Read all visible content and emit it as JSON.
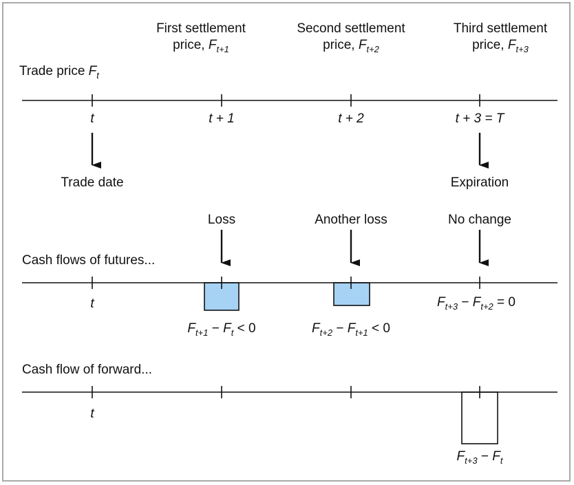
{
  "colors": {
    "bar_fill": "#a6d2f3",
    "line": "#111111",
    "frame": "#a9a9a9"
  },
  "header": {
    "trade_price_label": "Trade price",
    "trade_price_var": "F",
    "trade_price_sub": "t",
    "settlements": [
      {
        "line1": "First settlement",
        "line2": "price,",
        "var": "F",
        "sub": "t+1"
      },
      {
        "line1": "Second settlement",
        "line2": "price,",
        "var": "F",
        "sub": "t+2"
      },
      {
        "line1": "Third settlement",
        "line2": "price,",
        "var": "F",
        "sub": "t+3"
      }
    ]
  },
  "timeline": {
    "ticks": [
      "t",
      "t + 1",
      "t + 2",
      "t + 3 = T"
    ],
    "trade_date": "Trade date",
    "expiration": "Expiration"
  },
  "futures": {
    "title": "Cash flows of futures...",
    "tick_t": "t",
    "events": [
      "Loss",
      "Another loss",
      "No change"
    ],
    "formulas": [
      {
        "a": "F",
        "a_sub": "t+1",
        "op": "−",
        "b": "F",
        "b_sub": "t",
        "rel": "< 0"
      },
      {
        "a": "F",
        "a_sub": "t+2",
        "op": "−",
        "b": "F",
        "b_sub": "t+1",
        "rel": "< 0"
      },
      {
        "a": "F",
        "a_sub": "t+3",
        "op": "−",
        "b": "F",
        "b_sub": "t+2",
        "rel": "= 0"
      }
    ]
  },
  "forward": {
    "title": "Cash flow of forward...",
    "tick_t": "t",
    "formula": {
      "a": "F",
      "a_sub": "t+3",
      "op": "−",
      "b": "F",
      "b_sub": "t"
    }
  }
}
